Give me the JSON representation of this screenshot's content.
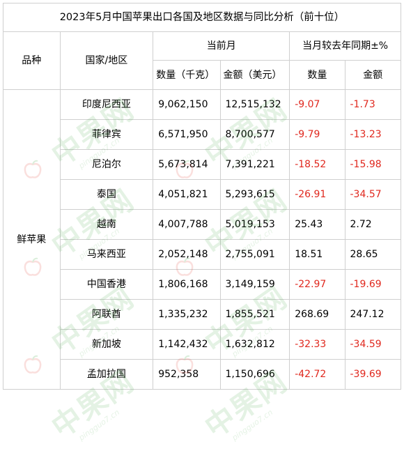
{
  "title": "2023年5月中国苹果出口各国及地区数据与同比分析（前十位）",
  "headers": {
    "category": "品种",
    "country": "国家/地区",
    "current_month": "当前月",
    "yoy": "当月较去年同期±%",
    "qty": "数量（千克）",
    "amount": "金额（美元）",
    "yoy_qty": "数量",
    "yoy_amount": "金额"
  },
  "category": "鲜苹果",
  "rows": [
    {
      "country": "印度尼西亚",
      "qty": "9,062,150",
      "amount": "12,515,132",
      "yoy_qty": "-9.07",
      "yoy_amount": "-1.73"
    },
    {
      "country": "菲律宾",
      "qty": "6,571,950",
      "amount": "8,700,577",
      "yoy_qty": "-9.79",
      "yoy_amount": "-13.23"
    },
    {
      "country": "尼泊尔",
      "qty": "5,673,814",
      "amount": "7,391,221",
      "yoy_qty": "-18.52",
      "yoy_amount": "-15.98"
    },
    {
      "country": "泰国",
      "qty": "4,051,821",
      "amount": "5,293,615",
      "yoy_qty": "-26.91",
      "yoy_amount": "-34.57"
    },
    {
      "country": "越南",
      "qty": "4,007,788",
      "amount": "5,019,153",
      "yoy_qty": "25.43",
      "yoy_amount": "2.72"
    },
    {
      "country": "马来西亚",
      "qty": "2,052,148",
      "amount": "2,755,091",
      "yoy_qty": "18.51",
      "yoy_amount": "28.65"
    },
    {
      "country": "中国香港",
      "qty": "1,806,168",
      "amount": "3,149,159",
      "yoy_qty": "-22.97",
      "yoy_amount": "-19.69"
    },
    {
      "country": "阿联酋",
      "qty": "1,335,232",
      "amount": "1,855,521",
      "yoy_qty": "268.69",
      "yoy_amount": "247.12"
    },
    {
      "country": "新加坡",
      "qty": "1,142,432",
      "amount": "1,632,812",
      "yoy_qty": "-32.33",
      "yoy_amount": "-34.59"
    },
    {
      "country": "孟加拉国",
      "qty": "952,358",
      "amount": "1,150,696",
      "yoy_qty": "-42.72",
      "yoy_amount": "-39.69"
    }
  ],
  "watermark": {
    "text": "中果网",
    "subtext": "pingguo7.cn"
  },
  "colors": {
    "negative": "#e0281e",
    "positive": "#000000",
    "border": "#cfcfcf",
    "watermark": "#3aa33a",
    "apple_icon": "#e8534a"
  }
}
